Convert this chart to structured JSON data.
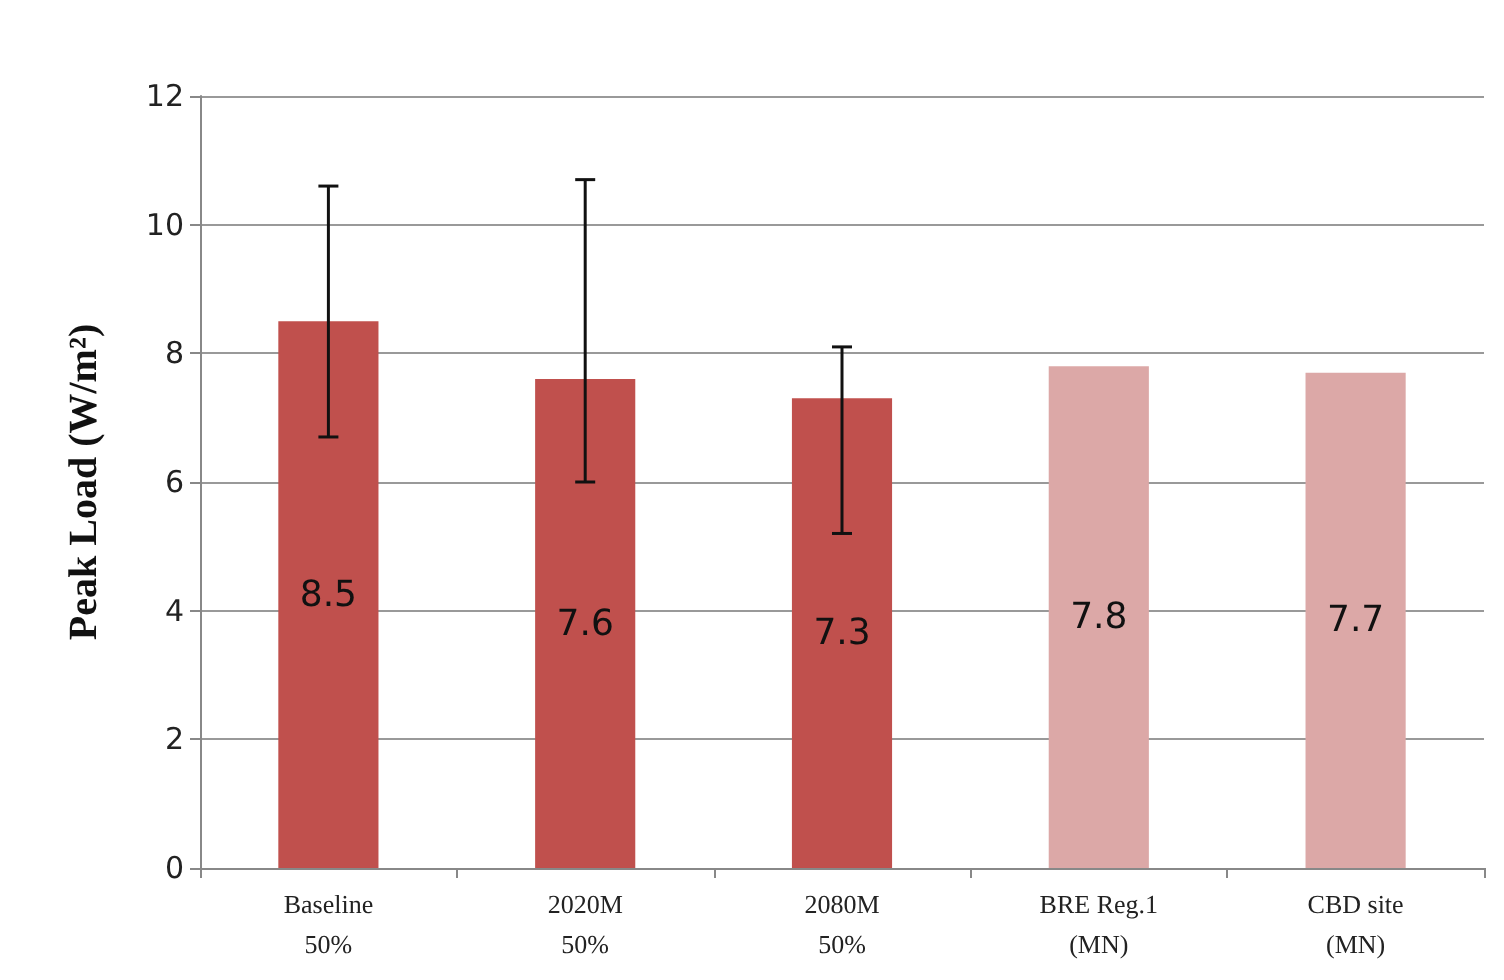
{
  "chart_data": {
    "type": "bar",
    "ylabel": "Peak Load (W/m²)",
    "categories": [
      "Baseline\n50%",
      "2020M\n50%",
      "2080M\n50%",
      "BRE Reg.1\n(MN)",
      "CBD site\n(MN)"
    ],
    "values": [
      8.5,
      7.6,
      7.3,
      7.8,
      7.7
    ],
    "colors": [
      "#c0504d",
      "#c0504d",
      "#c0504d",
      "#dca8a7",
      "#dca8a7"
    ],
    "errors": [
      [
        6.7,
        10.6
      ],
      [
        6.0,
        10.7
      ],
      [
        5.2,
        8.1
      ],
      null,
      null
    ],
    "ylim": [
      0,
      12
    ],
    "yticks": [
      0,
      2,
      4,
      6,
      8,
      10,
      12
    ],
    "grid": "y",
    "data_labels": true
  }
}
